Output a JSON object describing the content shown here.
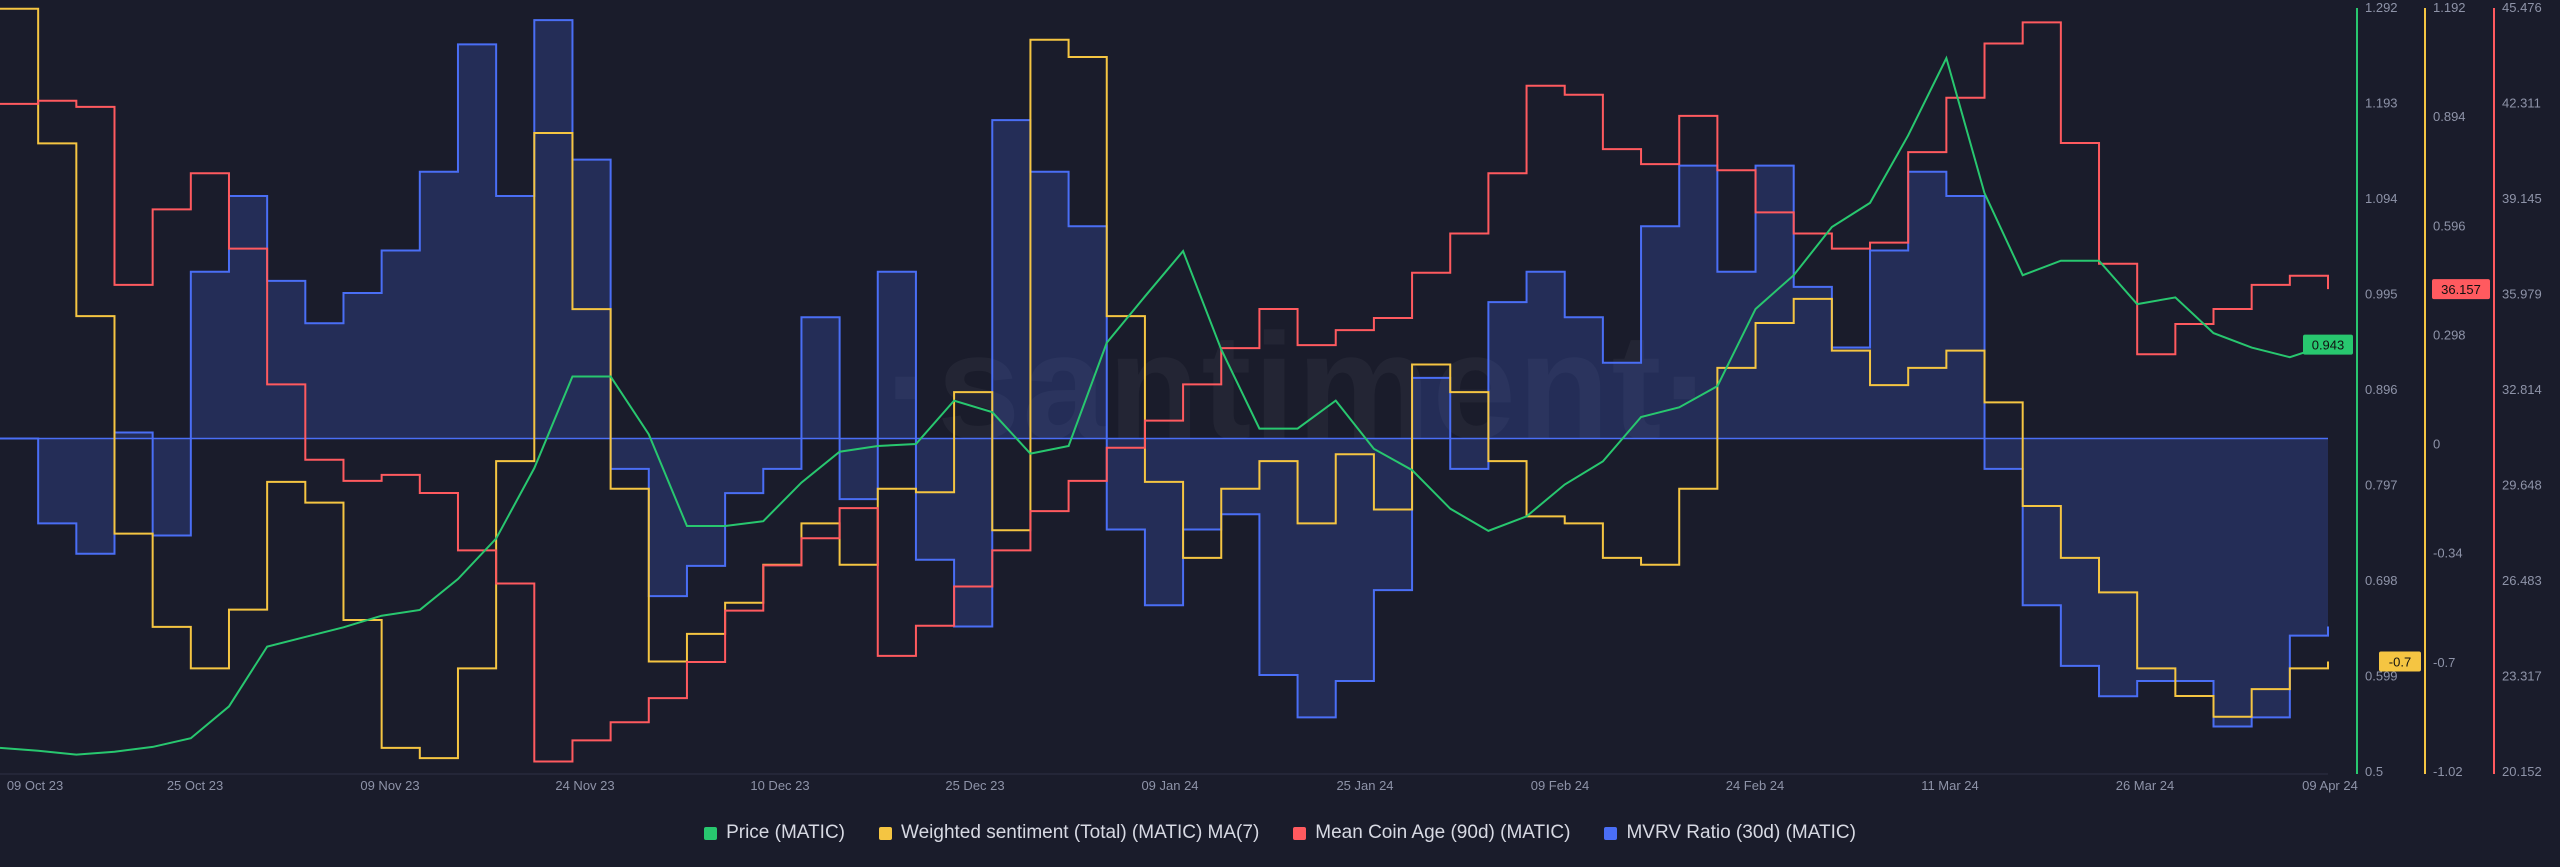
{
  "watermark": "·santiment·",
  "chart_data": {
    "type": "line",
    "x_labels": [
      "09 Oct 23",
      "25 Oct 23",
      "09 Nov 23",
      "24 Nov 23",
      "10 Dec 23",
      "25 Dec 23",
      "09 Jan 24",
      "25 Jan 24",
      "09 Feb 24",
      "24 Feb 24",
      "11 Mar 24",
      "26 Mar 24",
      "09 Apr 24"
    ],
    "x_range_days": [
      0,
      183
    ],
    "axes": [
      {
        "id": "price",
        "color": "#28c76f",
        "ticks": [
          "1.292",
          "1.193",
          "1.094",
          "0.995",
          "0.896",
          "0.797",
          "0.698",
          "0.599",
          "0.5"
        ],
        "range": [
          0.5,
          1.292
        ],
        "current_label": "0.943"
      },
      {
        "id": "sentiment",
        "color": "#f5c542",
        "ticks": [
          "1.192",
          "0.894",
          "0.596",
          "0.298",
          "0",
          "-0.34",
          "-0.7",
          "-1.02"
        ],
        "range": [
          -1.02,
          1.192
        ],
        "current_label": "-0.7"
      },
      {
        "id": "coinage",
        "color": "#ff5a5f",
        "ticks": [
          "45.476",
          "42.311",
          "39.145",
          "35.979",
          "32.814",
          "29.648",
          "26.483",
          "23.317",
          "20.152"
        ],
        "range": [
          20.152,
          45.476
        ],
        "current_label": "36.157"
      }
    ],
    "mvrv_baseline_days": 0,
    "series": [
      {
        "name": "Price (MATIC)",
        "axis": "price",
        "color": "#28c76f",
        "days": [
          0,
          3,
          6,
          9,
          12,
          15,
          18,
          21,
          24,
          27,
          30,
          33,
          36,
          39,
          42,
          45,
          48,
          51,
          54,
          57,
          60,
          63,
          66,
          69,
          72,
          75,
          78,
          81,
          84,
          87,
          90,
          93,
          96,
          99,
          102,
          105,
          108,
          111,
          114,
          117,
          120,
          123,
          126,
          129,
          132,
          135,
          138,
          141,
          144,
          147,
          150,
          153,
          156,
          159,
          162,
          165,
          168,
          171,
          174,
          177,
          180,
          183
        ],
        "values": [
          0.525,
          0.522,
          0.518,
          0.521,
          0.526,
          0.535,
          0.568,
          0.63,
          0.64,
          0.65,
          0.662,
          0.668,
          0.7,
          0.742,
          0.815,
          0.91,
          0.91,
          0.85,
          0.755,
          0.755,
          0.76,
          0.8,
          0.832,
          0.838,
          0.84,
          0.885,
          0.873,
          0.83,
          0.838,
          0.945,
          0.993,
          1.04,
          0.938,
          0.856,
          0.856,
          0.885,
          0.835,
          0.813,
          0.773,
          0.75,
          0.765,
          0.798,
          0.822,
          0.868,
          0.878,
          0.9,
          0.98,
          1.015,
          1.065,
          1.09,
          1.16,
          1.24,
          1.1,
          1.015,
          1.03,
          1.03,
          0.985,
          0.992,
          0.955,
          0.94,
          0.93,
          0.943
        ]
      },
      {
        "name": "Weighted sentiment (Total) (MATIC) MA(7)",
        "axis": "sentiment",
        "color": "#f5c542",
        "days": [
          0,
          3,
          6,
          9,
          12,
          15,
          18,
          21,
          24,
          27,
          30,
          33,
          36,
          39,
          42,
          45,
          48,
          51,
          54,
          57,
          60,
          63,
          66,
          69,
          72,
          75,
          78,
          81,
          84,
          87,
          90,
          93,
          96,
          99,
          102,
          105,
          108,
          111,
          114,
          117,
          120,
          123,
          126,
          129,
          132,
          135,
          138,
          141,
          144,
          147,
          150,
          153,
          156,
          159,
          162,
          165,
          168,
          171,
          174,
          177,
          180,
          183
        ],
        "values": [
          1.19,
          0.8,
          0.3,
          -0.33,
          -0.6,
          -0.72,
          -0.55,
          -0.18,
          -0.24,
          -0.58,
          -0.95,
          -0.98,
          -0.72,
          -0.12,
          0.83,
          0.32,
          -0.2,
          -0.7,
          -0.62,
          -0.53,
          -0.42,
          -0.3,
          -0.42,
          -0.2,
          -0.21,
          0.08,
          -0.32,
          1.1,
          1.05,
          0.3,
          -0.18,
          -0.4,
          -0.2,
          -0.12,
          -0.3,
          -0.1,
          -0.26,
          0.16,
          0.08,
          -0.12,
          -0.28,
          -0.3,
          -0.4,
          -0.42,
          -0.2,
          0.15,
          0.28,
          0.35,
          0.2,
          0.1,
          0.15,
          0.2,
          0.05,
          -0.25,
          -0.4,
          -0.5,
          -0.72,
          -0.8,
          -0.86,
          -0.78,
          -0.72,
          -0.7
        ]
      },
      {
        "name": "Mean Coin Age (90d) (MATIC)",
        "axis": "coinage",
        "color": "#ff5a5f",
        "days": [
          0,
          3,
          6,
          9,
          12,
          15,
          18,
          21,
          24,
          27,
          30,
          33,
          36,
          39,
          42,
          45,
          48,
          51,
          54,
          57,
          60,
          63,
          66,
          69,
          72,
          75,
          78,
          81,
          84,
          87,
          90,
          93,
          96,
          99,
          102,
          105,
          108,
          111,
          114,
          117,
          120,
          123,
          126,
          129,
          132,
          135,
          138,
          141,
          144,
          147,
          150,
          153,
          156,
          159,
          162,
          165,
          168,
          171,
          174,
          177,
          180,
          183
        ],
        "values": [
          42.3,
          42.4,
          42.2,
          36.3,
          38.8,
          40.0,
          37.5,
          33.0,
          30.5,
          29.8,
          30.0,
          29.4,
          27.5,
          26.4,
          20.5,
          21.2,
          21.8,
          22.6,
          23.8,
          25.5,
          27.0,
          27.9,
          28.9,
          24.0,
          25.0,
          26.3,
          27.5,
          28.8,
          29.8,
          30.9,
          31.8,
          33.0,
          34.2,
          35.5,
          34.3,
          34.8,
          35.2,
          36.7,
          38.0,
          40.0,
          42.9,
          42.6,
          40.8,
          40.3,
          41.9,
          40.1,
          38.7,
          38.0,
          37.5,
          37.7,
          40.7,
          42.5,
          44.3,
          45.0,
          41.0,
          37.0,
          34.0,
          35.0,
          35.5,
          36.3,
          36.6,
          36.157
        ]
      },
      {
        "name": "MVRV Ratio (30d) (MATIC)",
        "axis": "mvrv",
        "color": "#4a6ef5",
        "days": [
          0,
          3,
          6,
          9,
          12,
          15,
          18,
          21,
          24,
          27,
          30,
          33,
          36,
          39,
          42,
          45,
          48,
          51,
          54,
          57,
          60,
          63,
          66,
          69,
          72,
          75,
          78,
          81,
          84,
          87,
          90,
          93,
          96,
          99,
          102,
          105,
          108,
          111,
          114,
          117,
          120,
          123,
          126,
          129,
          132,
          135,
          138,
          141,
          144,
          147,
          150,
          153,
          156,
          159,
          162,
          165,
          168,
          171,
          174,
          177,
          180,
          183
        ],
        "values": [
          0.0,
          -0.28,
          -0.38,
          0.02,
          -0.32,
          0.55,
          0.8,
          0.52,
          0.38,
          0.48,
          0.62,
          0.88,
          1.3,
          0.8,
          1.38,
          0.92,
          -0.1,
          -0.52,
          -0.42,
          -0.18,
          -0.1,
          0.4,
          -0.2,
          0.55,
          -0.4,
          -0.62,
          1.05,
          0.88,
          0.7,
          -0.3,
          -0.55,
          -0.3,
          -0.25,
          -0.78,
          -0.92,
          -0.8,
          -0.5,
          0.2,
          -0.1,
          0.45,
          0.55,
          0.4,
          0.25,
          0.7,
          0.9,
          0.55,
          0.9,
          0.5,
          0.3,
          0.62,
          0.88,
          0.8,
          -0.1,
          -0.55,
          -0.75,
          -0.85,
          -0.8,
          -0.8,
          -0.95,
          -0.92,
          -0.65,
          -0.62
        ]
      }
    ],
    "mvrv_range": [
      -1.1,
      1.42
    ]
  },
  "legend": [
    {
      "label": "Price (MATIC)",
      "color": "#28c76f"
    },
    {
      "label": "Weighted sentiment (Total) (MATIC) MA(7)",
      "color": "#f5c542"
    },
    {
      "label": "Mean Coin Age (90d) (MATIC)",
      "color": "#ff5a5f"
    },
    {
      "label": "MVRV Ratio (30d) (MATIC)",
      "color": "#4a6ef5"
    }
  ]
}
